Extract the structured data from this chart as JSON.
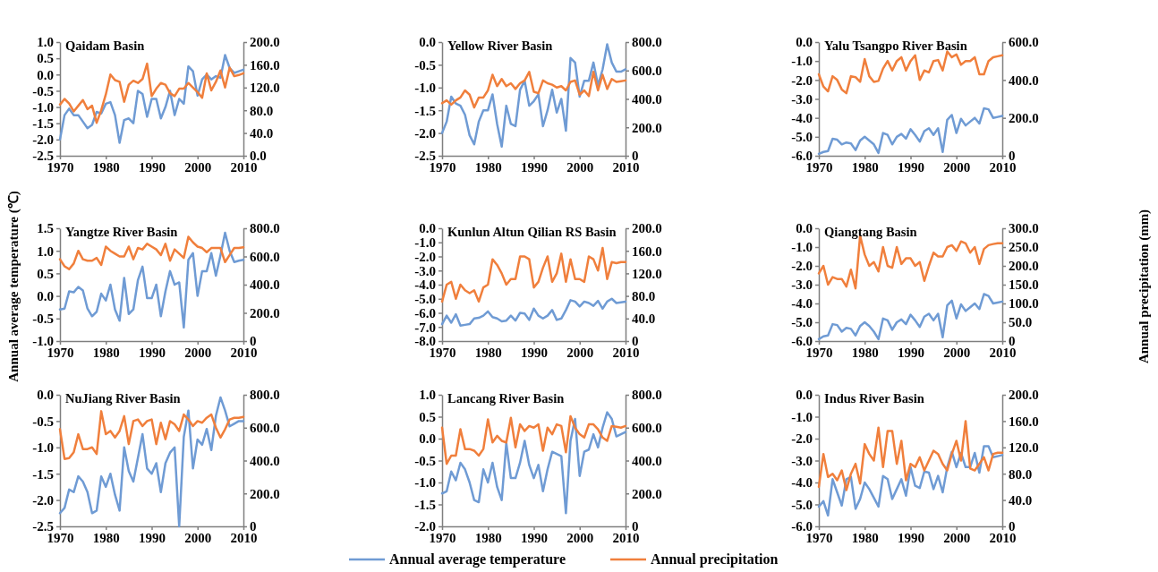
{
  "chart_data": [
    {
      "type": "line",
      "title": "Qaidam Basin",
      "x": [
        1970,
        1971,
        1972,
        1973,
        1974,
        1975,
        1976,
        1977,
        1978,
        1979,
        1980,
        1981,
        1982,
        1983,
        1984,
        1985,
        1986,
        1987,
        1988,
        1989,
        1990,
        1991,
        1992,
        1993,
        1994,
        1995,
        1996,
        1997,
        1998,
        1999,
        2000,
        2001,
        2002,
        2003,
        2004,
        2005,
        2006,
        2007,
        2008,
        2009,
        2010
      ],
      "xlim": [
        1970,
        2010
      ],
      "xticks": [
        1970,
        1980,
        1990,
        2000,
        2010
      ],
      "ylim": [
        -2.5,
        1.0
      ],
      "yticks": [
        {
          "value": -2.5,
          "label": "-2.5"
        },
        {
          "value": -2,
          "label": "-2.0"
        },
        {
          "value": -1.5,
          "label": "-1.5"
        },
        {
          "value": -1,
          "label": "-1.0"
        },
        {
          "value": -0.5,
          "label": "-0.5"
        },
        {
          "value": 0,
          "label": "0.0"
        },
        {
          "value": 0.5,
          "label": "0.5"
        },
        {
          "value": 1,
          "label": "1.0"
        }
      ],
      "y2lim": [
        0,
        200
      ],
      "y2ticks": [
        {
          "value": 0,
          "label": "0.0"
        },
        {
          "value": 40,
          "label": "40.0"
        },
        {
          "value": 80,
          "label": "80.0"
        },
        {
          "value": 120,
          "label": "120.0"
        },
        {
          "value": 160,
          "label": "160.0"
        },
        {
          "value": 200,
          "label": "200.0"
        }
      ],
      "series": [
        {
          "color": "#6f9bd4",
          "values": [
            -2.0,
            -1.25,
            -1.05,
            -1.25,
            -1.25,
            -1.45,
            -1.65,
            -1.55,
            -1.15,
            -1.2,
            -0.9,
            -0.85,
            -1.25,
            -2.1,
            -1.4,
            -1.35,
            -1.5,
            -0.5,
            -0.6,
            -1.3,
            -0.75,
            -0.75,
            -1.35,
            -1.0,
            -0.5,
            -1.25,
            -0.75,
            -0.9,
            0.25,
            0.1,
            -0.65,
            -0.15,
            0.0,
            -0.15,
            -0.05,
            -0.1,
            0.6,
            0.2,
            0.05,
            0.1,
            0.15
          ]
        },
        {
          "color": "#f07f3c",
          "axis": "y2",
          "values": [
            90,
            100,
            92,
            78,
            88,
            98,
            82,
            88,
            58,
            80,
            108,
            143,
            133,
            130,
            95,
            125,
            132,
            128,
            135,
            162,
            105,
            118,
            128,
            125,
            110,
            105,
            118,
            118,
            128,
            120,
            112,
            102,
            145,
            115,
            130,
            150,
            120,
            155,
            140,
            142,
            145
          ]
        }
      ]
    },
    {
      "type": "line",
      "title": "Yellow River Basin",
      "x": [
        1970,
        1971,
        1972,
        1973,
        1974,
        1975,
        1976,
        1977,
        1978,
        1979,
        1980,
        1981,
        1982,
        1983,
        1984,
        1985,
        1986,
        1987,
        1988,
        1989,
        1990,
        1991,
        1992,
        1993,
        1994,
        1995,
        1996,
        1997,
        1998,
        1999,
        2000,
        2001,
        2002,
        2003,
        2004,
        2005,
        2006,
        2007,
        2008,
        2009,
        2010
      ],
      "xlim": [
        1970,
        2010
      ],
      "xticks": [
        1970,
        1980,
        1990,
        2000,
        2010
      ],
      "ylim": [
        -2.5,
        0
      ],
      "yticks": [
        {
          "value": -2.5,
          "label": "-2.5"
        },
        {
          "value": -2,
          "label": "-2.0"
        },
        {
          "value": -1.5,
          "label": "-1.5"
        },
        {
          "value": -1,
          "label": "-1.0"
        },
        {
          "value": -0.5,
          "label": "-0.5"
        },
        {
          "value": 0,
          "label": "0.0"
        }
      ],
      "y2lim": [
        0,
        800
      ],
      "y2ticks": [
        {
          "value": 0,
          "label": "0"
        },
        {
          "value": 200,
          "label": "200.0"
        },
        {
          "value": 400,
          "label": "400.0"
        },
        {
          "value": 600,
          "label": "600.0"
        },
        {
          "value": 800,
          "label": "800.0"
        }
      ],
      "series": [
        {
          "color": "#6f9bd4",
          "values": [
            -2.0,
            -1.75,
            -1.2,
            -1.35,
            -1.4,
            -1.6,
            -2.05,
            -2.25,
            -1.75,
            -1.5,
            -1.5,
            -1.15,
            -1.8,
            -2.3,
            -1.4,
            -1.8,
            -1.85,
            -1.05,
            -0.85,
            -1.4,
            -1.3,
            -1.15,
            -1.85,
            -1.5,
            -1.05,
            -1.55,
            -1.25,
            -1.95,
            -0.35,
            -0.45,
            -1.2,
            -0.85,
            -0.85,
            -0.45,
            -0.95,
            -0.6,
            -0.05,
            -0.45,
            -0.65,
            -0.65,
            -0.6
          ]
        },
        {
          "color": "#f07f3c",
          "axis": "y2",
          "values": [
            370,
            390,
            360,
            390,
            410,
            460,
            430,
            340,
            410,
            410,
            460,
            570,
            490,
            540,
            490,
            510,
            470,
            510,
            530,
            590,
            450,
            440,
            530,
            510,
            500,
            480,
            490,
            460,
            520,
            530,
            430,
            460,
            420,
            590,
            460,
            570,
            470,
            540,
            520,
            525,
            530
          ]
        }
      ]
    },
    {
      "type": "line",
      "title": "Yalu Tsangpo River Basin",
      "x": [
        1970,
        1971,
        1972,
        1973,
        1974,
        1975,
        1976,
        1977,
        1978,
        1979,
        1980,
        1981,
        1982,
        1983,
        1984,
        1985,
        1986,
        1987,
        1988,
        1989,
        1990,
        1991,
        1992,
        1993,
        1994,
        1995,
        1996,
        1997,
        1998,
        1999,
        2000,
        2001,
        2002,
        2003,
        2004,
        2005,
        2006,
        2007,
        2008,
        2009,
        2010
      ],
      "xlim": [
        1970,
        2010
      ],
      "xticks": [
        1970,
        1980,
        1990,
        2000,
        2010
      ],
      "ylim": [
        -6,
        0
      ],
      "yticks": [
        {
          "value": -6,
          "label": "-6.0"
        },
        {
          "value": -5,
          "label": "-5.0"
        },
        {
          "value": -4,
          "label": "-4.0"
        },
        {
          "value": -3,
          "label": "-3.0"
        },
        {
          "value": -2,
          "label": "-2.0"
        },
        {
          "value": -1,
          "label": "-1.0"
        },
        {
          "value": 0,
          "label": "0.0"
        }
      ],
      "y2lim": [
        0,
        600
      ],
      "y2ticks": [
        {
          "value": 0,
          "label": "0"
        },
        {
          "value": 200,
          "label": "200.0"
        },
        {
          "value": 400,
          "label": "400.0"
        },
        {
          "value": 600,
          "label": "600.0"
        }
      ],
      "series": [
        {
          "color": "#6f9bd4",
          "values": [
            -5.9,
            -5.8,
            -5.75,
            -5.1,
            -5.15,
            -5.4,
            -5.3,
            -5.35,
            -5.7,
            -5.2,
            -5.0,
            -5.2,
            -5.4,
            -5.85,
            -4.8,
            -4.9,
            -5.4,
            -5.0,
            -4.85,
            -5.1,
            -4.6,
            -4.9,
            -5.25,
            -4.7,
            -4.55,
            -4.9,
            -4.55,
            -5.8,
            -4.1,
            -3.85,
            -4.8,
            -4.05,
            -4.4,
            -4.2,
            -4.0,
            -4.3,
            -3.5,
            -3.55,
            -4.0,
            -3.95,
            -3.9
          ]
        },
        {
          "color": "#f07f3c",
          "axis": "y2",
          "values": [
            430,
            365,
            340,
            420,
            400,
            350,
            330,
            420,
            415,
            390,
            510,
            420,
            390,
            395,
            460,
            500,
            450,
            500,
            520,
            450,
            500,
            530,
            400,
            450,
            440,
            500,
            505,
            450,
            550,
            520,
            535,
            480,
            500,
            500,
            520,
            430,
            430,
            500,
            520,
            525,
            530
          ]
        }
      ]
    },
    {
      "type": "line",
      "title": "Yangtze River Basin",
      "ylabel": "Annual average temperature (℃)",
      "x": [
        1970,
        1971,
        1972,
        1973,
        1974,
        1975,
        1976,
        1977,
        1978,
        1979,
        1980,
        1981,
        1982,
        1983,
        1984,
        1985,
        1986,
        1987,
        1988,
        1989,
        1990,
        1991,
        1992,
        1993,
        1994,
        1995,
        1996,
        1997,
        1998,
        1999,
        2000,
        2001,
        2002,
        2003,
        2004,
        2005,
        2006,
        2007,
        2008,
        2009,
        2010
      ],
      "xlim": [
        1970,
        2010
      ],
      "xticks": [
        1970,
        1980,
        1990,
        2000,
        2010
      ],
      "ylim": [
        -1,
        1.5
      ],
      "yticks": [
        {
          "value": -1,
          "label": "-1.0"
        },
        {
          "value": -0.5,
          "label": "-0.5"
        },
        {
          "value": 0,
          "label": "0.0"
        },
        {
          "value": 0.5,
          "label": "0.5"
        },
        {
          "value": 1,
          "label": "1.0"
        },
        {
          "value": 1.5,
          "label": "1.5"
        }
      ],
      "y2lim": [
        0,
        800
      ],
      "y2ticks": [
        {
          "value": 0,
          "label": "0"
        },
        {
          "value": 200,
          "label": "200.0"
        },
        {
          "value": 400,
          "label": "400.0"
        },
        {
          "value": 600,
          "label": "600.0"
        },
        {
          "value": 800,
          "label": "800.0"
        }
      ],
      "series": [
        {
          "color": "#6f9bd4",
          "values": [
            -0.3,
            -0.28,
            0.1,
            0.08,
            0.2,
            0.12,
            -0.28,
            -0.45,
            -0.35,
            0.05,
            -0.1,
            0.25,
            -0.3,
            -0.55,
            0.4,
            -0.4,
            -0.3,
            0.35,
            0.65,
            -0.05,
            -0.05,
            0.25,
            -0.45,
            0.1,
            0.55,
            0.25,
            0.3,
            -0.7,
            0.8,
            0.95,
            0.0,
            0.55,
            0.55,
            0.95,
            0.45,
            0.9,
            1.4,
            1.0,
            0.75,
            0.78,
            0.8
          ]
        },
        {
          "color": "#f07f3c",
          "axis": "y2",
          "values": [
            580,
            530,
            510,
            550,
            640,
            580,
            570,
            570,
            590,
            540,
            670,
            640,
            620,
            600,
            600,
            670,
            580,
            660,
            650,
            690,
            670,
            650,
            610,
            690,
            570,
            650,
            620,
            590,
            740,
            700,
            670,
            660,
            630,
            660,
            660,
            660,
            560,
            610,
            660,
            660,
            665
          ]
        }
      ]
    },
    {
      "type": "line",
      "title": "Kunlun Altun Qilian RS Basin",
      "x": [
        1970,
        1971,
        1972,
        1973,
        1974,
        1975,
        1976,
        1977,
        1978,
        1979,
        1980,
        1981,
        1982,
        1983,
        1984,
        1985,
        1986,
        1987,
        1988,
        1989,
        1990,
        1991,
        1992,
        1993,
        1994,
        1995,
        1996,
        1997,
        1998,
        1999,
        2000,
        2001,
        2002,
        2003,
        2004,
        2005,
        2006,
        2007,
        2008,
        2009,
        2010
      ],
      "xlim": [
        1970,
        2010
      ],
      "xticks": [
        1970,
        1980,
        1990,
        2000,
        2010
      ],
      "ylim": [
        -8,
        0
      ],
      "yticks": [
        {
          "value": -8,
          "label": "-8.0"
        },
        {
          "value": -7,
          "label": "-7.0"
        },
        {
          "value": -6,
          "label": "-6.0"
        },
        {
          "value": -5,
          "label": "-5.0"
        },
        {
          "value": -4,
          "label": "-4.0"
        },
        {
          "value": -3,
          "label": "-3.0"
        },
        {
          "value": -2,
          "label": "-2.0"
        },
        {
          "value": -1,
          "label": "-1.0"
        },
        {
          "value": 0,
          "label": "0.0"
        }
      ],
      "y2lim": [
        0,
        200
      ],
      "y2ticks": [
        {
          "value": 0,
          "label": "0"
        },
        {
          "value": 40,
          "label": "40.0"
        },
        {
          "value": 80,
          "label": "80.0"
        },
        {
          "value": 120,
          "label": "120.0"
        },
        {
          "value": 160,
          "label": "160.0"
        },
        {
          "value": 200,
          "label": "200.0"
        }
      ],
      "series": [
        {
          "color": "#6f9bd4",
          "values": [
            -6.8,
            -6.2,
            -6.7,
            -6.1,
            -6.9,
            -6.85,
            -6.8,
            -6.4,
            -6.35,
            -6.2,
            -5.9,
            -6.3,
            -6.4,
            -6.6,
            -6.55,
            -6.2,
            -6.55,
            -6.0,
            -6.05,
            -6.5,
            -5.7,
            -6.2,
            -6.4,
            -6.2,
            -5.8,
            -6.5,
            -6.4,
            -5.8,
            -5.1,
            -5.2,
            -5.55,
            -5.2,
            -5.3,
            -5.5,
            -5.15,
            -5.7,
            -5.2,
            -5.0,
            -5.3,
            -5.25,
            -5.2
          ]
        },
        {
          "color": "#f07f3c",
          "axis": "y2",
          "values": [
            70,
            100,
            105,
            75,
            100,
            90,
            85,
            90,
            70,
            95,
            100,
            145,
            135,
            120,
            100,
            110,
            110,
            150,
            150,
            145,
            95,
            105,
            130,
            150,
            105,
            120,
            155,
            105,
            145,
            110,
            110,
            105,
            150,
            145,
            125,
            165,
            110,
            140,
            138,
            140,
            140
          ]
        }
      ]
    },
    {
      "type": "line",
      "title": "Qiangtang Basin",
      "y2label": "Annual precipitation (mm)",
      "x": [
        1970,
        1971,
        1972,
        1973,
        1974,
        1975,
        1976,
        1977,
        1978,
        1979,
        1980,
        1981,
        1982,
        1983,
        1984,
        1985,
        1986,
        1987,
        1988,
        1989,
        1990,
        1991,
        1992,
        1993,
        1994,
        1995,
        1996,
        1997,
        1998,
        1999,
        2000,
        2001,
        2002,
        2003,
        2004,
        2005,
        2006,
        2007,
        2008,
        2009,
        2010
      ],
      "xlim": [
        1970,
        2010
      ],
      "xticks": [
        1970,
        1980,
        1990,
        2000,
        2010
      ],
      "ylim": [
        -6,
        0
      ],
      "yticks": [
        {
          "value": -6,
          "label": "-6.0"
        },
        {
          "value": -5,
          "label": "-5.0"
        },
        {
          "value": -4,
          "label": "-4.0"
        },
        {
          "value": -3,
          "label": "-3.0"
        },
        {
          "value": -2,
          "label": "-2.0"
        },
        {
          "value": -1,
          "label": "-1.0"
        },
        {
          "value": 0,
          "label": "0.0"
        }
      ],
      "y2lim": [
        0,
        300
      ],
      "y2ticks": [
        {
          "value": 0,
          "label": "0"
        },
        {
          "value": 50,
          "label": "50.0"
        },
        {
          "value": 100,
          "label": "100.0"
        },
        {
          "value": 150,
          "label": "150.0"
        },
        {
          "value": 200,
          "label": "200.0"
        },
        {
          "value": 250,
          "label": "250.0"
        },
        {
          "value": 300,
          "label": "300.0"
        }
      ],
      "series": [
        {
          "color": "#6f9bd4",
          "values": [
            -5.9,
            -5.75,
            -5.7,
            -5.1,
            -5.15,
            -5.5,
            -5.3,
            -5.35,
            -5.7,
            -5.2,
            -5.0,
            -5.2,
            -5.5,
            -5.9,
            -4.8,
            -4.9,
            -5.4,
            -5.0,
            -4.85,
            -5.1,
            -4.6,
            -4.9,
            -5.25,
            -4.7,
            -4.55,
            -4.9,
            -4.55,
            -5.8,
            -4.1,
            -3.85,
            -4.8,
            -4.05,
            -4.4,
            -4.2,
            -4.0,
            -4.3,
            -3.5,
            -3.6,
            -4.0,
            -3.95,
            -3.9
          ]
        },
        {
          "color": "#f07f3c",
          "axis": "y2",
          "values": [
            180,
            200,
            150,
            170,
            165,
            165,
            145,
            190,
            140,
            280,
            230,
            200,
            210,
            185,
            250,
            200,
            195,
            250,
            205,
            220,
            220,
            200,
            210,
            160,
            200,
            235,
            225,
            225,
            250,
            255,
            240,
            265,
            260,
            235,
            250,
            205,
            245,
            255,
            258,
            260,
            260
          ]
        }
      ]
    },
    {
      "type": "line",
      "title": "NuJiang River Basin",
      "x": [
        1970,
        1971,
        1972,
        1973,
        1974,
        1975,
        1976,
        1977,
        1978,
        1979,
        1980,
        1981,
        1982,
        1983,
        1984,
        1985,
        1986,
        1987,
        1988,
        1989,
        1990,
        1991,
        1992,
        1993,
        1994,
        1995,
        1996,
        1997,
        1998,
        1999,
        2000,
        2001,
        2002,
        2003,
        2004,
        2005,
        2006,
        2007,
        2008,
        2009,
        2010
      ],
      "xlim": [
        1970,
        2010
      ],
      "xticks": [
        1970,
        1980,
        1990,
        2000,
        2010
      ],
      "ylim": [
        -2.5,
        0
      ],
      "yticks": [
        {
          "value": -2.5,
          "label": "-2.5"
        },
        {
          "value": -2,
          "label": "-2.0"
        },
        {
          "value": -1.5,
          "label": "-1.5"
        },
        {
          "value": -1,
          "label": "-1.0"
        },
        {
          "value": -0.5,
          "label": "-0.5"
        },
        {
          "value": 0,
          "label": "0.0"
        }
      ],
      "y2lim": [
        0,
        800
      ],
      "y2ticks": [
        {
          "value": 0,
          "label": "0"
        },
        {
          "value": 200,
          "label": "200.0"
        },
        {
          "value": 400,
          "label": "400.0"
        },
        {
          "value": 600,
          "label": "600.0"
        },
        {
          "value": 800,
          "label": "800.0"
        }
      ],
      "series": [
        {
          "color": "#6f9bd4",
          "values": [
            -2.25,
            -2.15,
            -1.8,
            -1.85,
            -1.55,
            -1.65,
            -1.85,
            -2.25,
            -2.2,
            -1.55,
            -1.75,
            -1.5,
            -1.9,
            -2.2,
            -1.0,
            -1.45,
            -1.65,
            -1.2,
            -0.75,
            -1.4,
            -1.5,
            -1.3,
            -1.85,
            -1.3,
            -1.1,
            -1.0,
            -2.5,
            -0.8,
            -0.3,
            -1.4,
            -0.85,
            -0.95,
            -0.65,
            -1.05,
            -0.4,
            -0.05,
            -0.3,
            -0.6,
            -0.55,
            -0.5,
            -0.5
          ]
        },
        {
          "color": "#f07f3c",
          "axis": "y2",
          "values": [
            590,
            410,
            415,
            450,
            560,
            470,
            470,
            480,
            440,
            700,
            560,
            580,
            540,
            580,
            670,
            500,
            640,
            650,
            610,
            640,
            650,
            500,
            630,
            530,
            640,
            620,
            580,
            680,
            650,
            610,
            640,
            630,
            660,
            680,
            600,
            540,
            590,
            650,
            660,
            660,
            665
          ]
        }
      ]
    },
    {
      "type": "line",
      "title": "Lancang River Basin",
      "legend": "bottom",
      "x": [
        1970,
        1971,
        1972,
        1973,
        1974,
        1975,
        1976,
        1977,
        1978,
        1979,
        1980,
        1981,
        1982,
        1983,
        1984,
        1985,
        1986,
        1987,
        1988,
        1989,
        1990,
        1991,
        1992,
        1993,
        1994,
        1995,
        1996,
        1997,
        1998,
        1999,
        2000,
        2001,
        2002,
        2003,
        2004,
        2005,
        2006,
        2007,
        2008,
        2009,
        2010
      ],
      "xlim": [
        1970,
        2010
      ],
      "xticks": [
        1970,
        1980,
        1990,
        2000,
        2010
      ],
      "ylim": [
        -2,
        1
      ],
      "yticks": [
        {
          "value": -2,
          "label": "-2.0"
        },
        {
          "value": -1.5,
          "label": "-1.5"
        },
        {
          "value": -1,
          "label": "-1.0"
        },
        {
          "value": -0.5,
          "label": "-0.5"
        },
        {
          "value": 0,
          "label": "0.0"
        },
        {
          "value": 0.5,
          "label": "0.5"
        },
        {
          "value": 1,
          "label": "1.0"
        }
      ],
      "y2lim": [
        0,
        800
      ],
      "y2ticks": [
        {
          "value": 0,
          "label": "0"
        },
        {
          "value": 200,
          "label": "200.0"
        },
        {
          "value": 400,
          "label": "400.0"
        },
        {
          "value": 600,
          "label": "600.0"
        },
        {
          "value": 800,
          "label": "800.0"
        }
      ],
      "series": [
        {
          "name": "Annual average temperature",
          "color": "#6f9bd4",
          "values": [
            -1.25,
            -1.2,
            -0.75,
            -0.95,
            -0.55,
            -0.7,
            -1.0,
            -1.4,
            -1.45,
            -0.7,
            -1.0,
            -0.55,
            -1.1,
            -1.4,
            -0.1,
            -0.9,
            -0.9,
            -0.55,
            -0.05,
            -0.6,
            -0.9,
            -0.6,
            -1.2,
            -0.7,
            -0.3,
            -0.35,
            -0.4,
            -1.7,
            -0.05,
            0.45,
            -0.85,
            -0.3,
            -0.25,
            0.1,
            -0.2,
            0.25,
            0.6,
            0.45,
            0.05,
            0.1,
            0.15
          ]
        },
        {
          "name": "Annual precipitation",
          "color": "#f07f3c",
          "axis": "y2",
          "values": [
            600,
            380,
            430,
            430,
            590,
            470,
            470,
            460,
            430,
            470,
            650,
            510,
            550,
            520,
            510,
            660,
            480,
            620,
            580,
            610,
            600,
            620,
            460,
            600,
            560,
            620,
            610,
            450,
            670,
            600,
            560,
            540,
            620,
            620,
            590,
            540,
            520,
            610,
            605,
            600,
            610
          ]
        }
      ]
    },
    {
      "type": "line",
      "title": "Indus River Basin",
      "x": [
        1970,
        1971,
        1972,
        1973,
        1974,
        1975,
        1976,
        1977,
        1978,
        1979,
        1980,
        1981,
        1982,
        1983,
        1984,
        1985,
        1986,
        1987,
        1988,
        1989,
        1990,
        1991,
        1992,
        1993,
        1994,
        1995,
        1996,
        1997,
        1998,
        1999,
        2000,
        2001,
        2002,
        2003,
        2004,
        2005,
        2006,
        2007,
        2008,
        2009,
        2010
      ],
      "xlim": [
        1970,
        2010
      ],
      "xticks": [
        1970,
        1980,
        1990,
        2000,
        2010
      ],
      "ylim": [
        -6,
        0
      ],
      "yticks": [
        {
          "value": -6,
          "label": "-6.0"
        },
        {
          "value": -5,
          "label": "-5.0"
        },
        {
          "value": -4,
          "label": "-4.0"
        },
        {
          "value": -3,
          "label": "-3.0"
        },
        {
          "value": -2,
          "label": "-2.0"
        },
        {
          "value": -1,
          "label": "-1.0"
        },
        {
          "value": 0,
          "label": "0.0"
        }
      ],
      "y2lim": [
        0,
        200
      ],
      "y2ticks": [
        {
          "value": 0,
          "label": "0"
        },
        {
          "value": 40,
          "label": "40.0"
        },
        {
          "value": 80,
          "label": "80.0"
        },
        {
          "value": 120,
          "label": "120.0"
        },
        {
          "value": 160,
          "label": "160.0"
        },
        {
          "value": 200,
          "label": "200.0"
        }
      ],
      "series": [
        {
          "color": "#6f9bd4",
          "values": [
            -5.1,
            -4.85,
            -5.5,
            -3.85,
            -4.45,
            -5.05,
            -3.85,
            -3.75,
            -5.2,
            -4.75,
            -4.0,
            -4.3,
            -4.7,
            -5.1,
            -3.7,
            -3.85,
            -4.75,
            -4.3,
            -3.85,
            -4.6,
            -3.3,
            -4.15,
            -4.25,
            -3.5,
            -3.55,
            -4.3,
            -3.7,
            -4.45,
            -3.3,
            -2.6,
            -3.3,
            -2.65,
            -3.3,
            -3.3,
            -2.65,
            -3.55,
            -2.35,
            -2.35,
            -2.85,
            -2.8,
            -2.75
          ]
        },
        {
          "color": "#f07f3c",
          "axis": "y2",
          "values": [
            60,
            110,
            75,
            80,
            70,
            85,
            55,
            80,
            95,
            65,
            125,
            110,
            100,
            150,
            90,
            145,
            145,
            95,
            130,
            70,
            95,
            90,
            105,
            85,
            100,
            115,
            110,
            95,
            85,
            110,
            130,
            100,
            160,
            88,
            85,
            95,
            105,
            85,
            110,
            112,
            112
          ]
        }
      ]
    }
  ]
}
